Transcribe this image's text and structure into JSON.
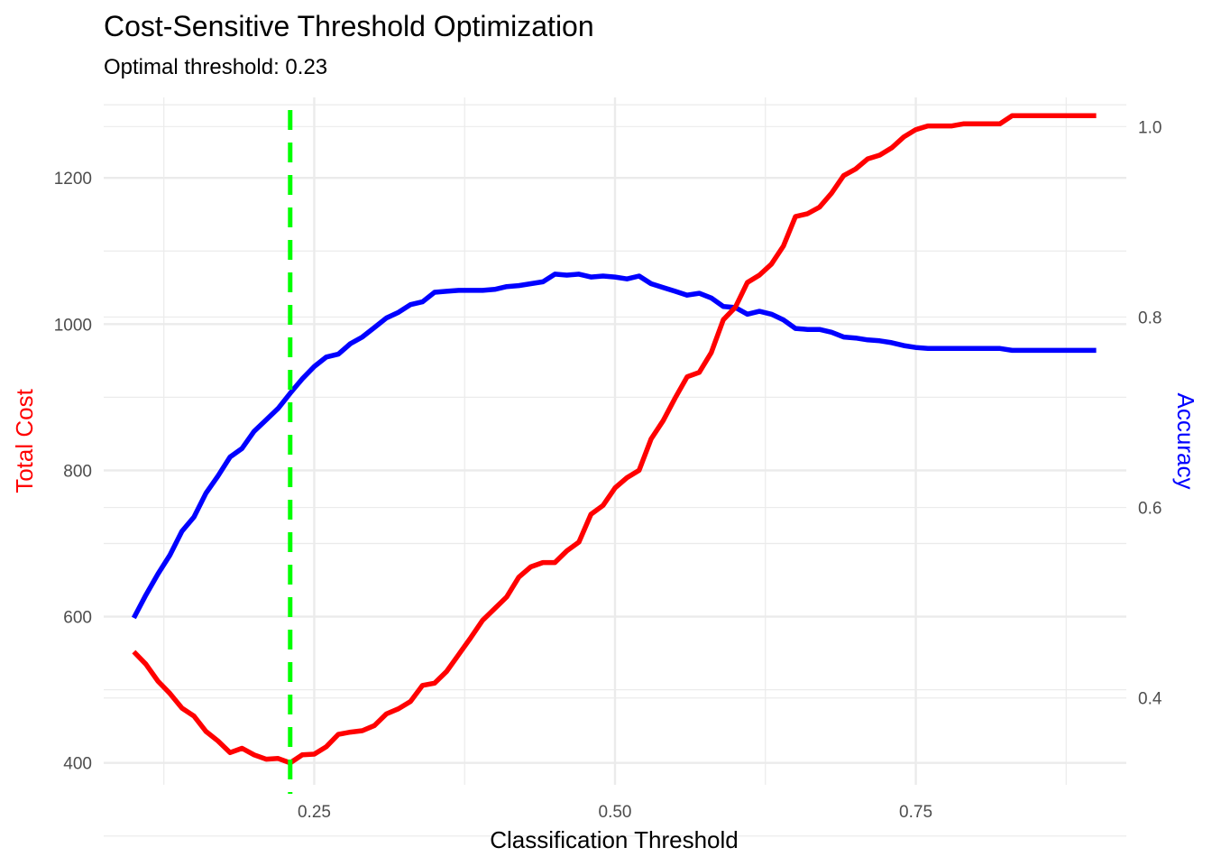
{
  "chart_data": {
    "type": "line",
    "title": "Cost-Sensitive Threshold Optimization",
    "subtitle": "Optimal threshold: 0.23",
    "xlabel": "Classification Threshold",
    "ylabel_left": "Total Cost",
    "ylabel_right": "Accuracy",
    "xlim": [
      0.075,
      0.925
    ],
    "ylim_left": [
      370,
      1310
    ],
    "ylim_right": [
      0.3088,
      1.0306
    ],
    "x_ticks": [
      0.25,
      0.5,
      0.75
    ],
    "x_tick_labels": [
      "0.25",
      "0.50",
      "0.75"
    ],
    "y_left_ticks": [
      400,
      600,
      800,
      1000,
      1200
    ],
    "y_left_tick_labels": [
      "400",
      "600",
      "800",
      "1000",
      "1200"
    ],
    "y_right_ticks": [
      0.4,
      0.6,
      0.8,
      1.0
    ],
    "y_right_tick_labels": [
      "0.4",
      "0.6",
      "0.8",
      "1.0"
    ],
    "optimal_threshold": 0.23,
    "colors": {
      "cost": "#ff0000",
      "accuracy": "#0000ff",
      "optimal": "#00ff00",
      "grid": "#ebebeb"
    },
    "x": [
      0.1,
      0.11,
      0.12,
      0.13,
      0.14,
      0.15,
      0.16,
      0.17,
      0.18,
      0.19,
      0.2,
      0.21,
      0.22,
      0.23,
      0.24,
      0.25,
      0.26,
      0.27,
      0.28,
      0.29,
      0.3,
      0.31,
      0.32,
      0.33,
      0.34,
      0.35,
      0.36,
      0.37,
      0.38,
      0.39,
      0.4,
      0.41,
      0.42,
      0.43,
      0.44,
      0.45,
      0.46,
      0.47,
      0.48,
      0.49,
      0.5,
      0.51,
      0.52,
      0.53,
      0.54,
      0.55,
      0.56,
      0.57,
      0.58,
      0.59,
      0.6,
      0.61,
      0.62,
      0.63,
      0.64,
      0.65,
      0.66,
      0.67,
      0.68,
      0.69,
      0.7,
      0.71,
      0.72,
      0.73,
      0.74,
      0.75,
      0.76,
      0.77,
      0.78,
      0.79,
      0.8,
      0.81,
      0.82,
      0.83,
      0.84,
      0.85,
      0.86,
      0.87,
      0.88,
      0.89,
      0.9
    ],
    "series": [
      {
        "name": "Total Cost",
        "axis": "left",
        "values": [
          552,
          535,
          512,
          495,
          475,
          464,
          443,
          430,
          414,
          420,
          411,
          405,
          406,
          400,
          411,
          412,
          422,
          439,
          442,
          444,
          451,
          467,
          474,
          484,
          506,
          509,
          525,
          548,
          571,
          595,
          611,
          627,
          654,
          668,
          674,
          674,
          690,
          702,
          740,
          752,
          776,
          790,
          800,
          843,
          868,
          899,
          928,
          934,
          961,
          1006,
          1023,
          1057,
          1067,
          1082,
          1107,
          1147,
          1151,
          1160,
          1179,
          1203,
          1212,
          1226,
          1231,
          1241,
          1256,
          1266,
          1271,
          1271,
          1271,
          1274,
          1274,
          1274,
          1274,
          1285,
          1285,
          1285,
          1285,
          1285,
          1285,
          1285,
          1285
        ]
      },
      {
        "name": "Accuracy",
        "axis": "right",
        "values": [
          0.484,
          0.508,
          0.53,
          0.55,
          0.575,
          0.59,
          0.615,
          0.633,
          0.653,
          0.662,
          0.68,
          0.692,
          0.704,
          0.72,
          0.735,
          0.748,
          0.758,
          0.761,
          0.772,
          0.779,
          0.789,
          0.799,
          0.805,
          0.813,
          0.816,
          0.826,
          0.827,
          0.828,
          0.828,
          0.828,
          0.829,
          0.832,
          0.833,
          0.835,
          0.837,
          0.845,
          0.844,
          0.845,
          0.842,
          0.843,
          0.842,
          0.84,
          0.843,
          0.835,
          0.831,
          0.827,
          0.823,
          0.825,
          0.82,
          0.811,
          0.81,
          0.803,
          0.806,
          0.803,
          0.797,
          0.788,
          0.787,
          0.787,
          0.784,
          0.779,
          0.778,
          0.776,
          0.775,
          0.773,
          0.77,
          0.768,
          0.767,
          0.767,
          0.767,
          0.767,
          0.767,
          0.767,
          0.767,
          0.765,
          0.765,
          0.765,
          0.765,
          0.765,
          0.765,
          0.765,
          0.765
        ]
      }
    ]
  }
}
